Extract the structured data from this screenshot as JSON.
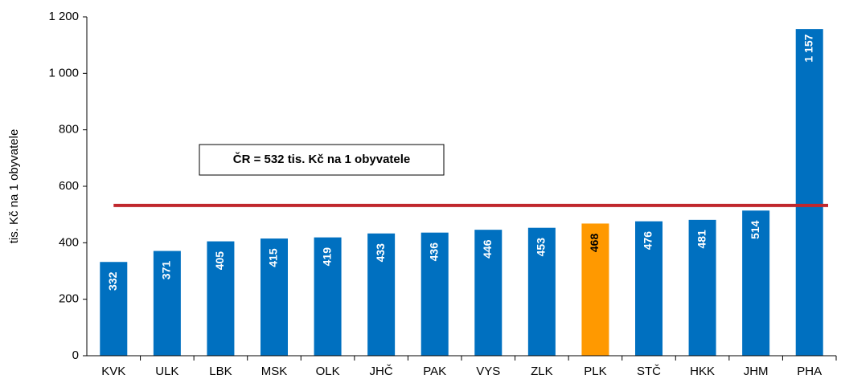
{
  "chart_data": {
    "type": "bar",
    "y_axis_label": "tis. Kč na 1 obyvatele",
    "categories": [
      "KVK",
      "ULK",
      "LBK",
      "MSK",
      "OLK",
      "JHČ",
      "PAK",
      "VYS",
      "ZLK",
      "PLK",
      "STČ",
      "HKK",
      "JHM",
      "PHA"
    ],
    "values": [
      332,
      371,
      405,
      415,
      419,
      433,
      436,
      446,
      453,
      468,
      476,
      481,
      514,
      1157
    ],
    "value_labels": [
      "332",
      "371",
      "405",
      "415",
      "419",
      "433",
      "436",
      "446",
      "453",
      "468",
      "476",
      "481",
      "514",
      "1 157"
    ],
    "colors": [
      "#0070c0",
      "#0070c0",
      "#0070c0",
      "#0070c0",
      "#0070c0",
      "#0070c0",
      "#0070c0",
      "#0070c0",
      "#0070c0",
      "#ff9900",
      "#0070c0",
      "#0070c0",
      "#0070c0",
      "#0070c0"
    ],
    "value_label_colors": [
      "#ffffff",
      "#ffffff",
      "#ffffff",
      "#ffffff",
      "#ffffff",
      "#ffffff",
      "#ffffff",
      "#ffffff",
      "#ffffff",
      "#000000",
      "#ffffff",
      "#ffffff",
      "#ffffff",
      "#ffffff"
    ],
    "reference_line": {
      "value": 532,
      "color": "#c0272d",
      "annotation": "ČR = 532 tis. Kč na 1 obyvatele"
    },
    "ylim": [
      0,
      1200
    ],
    "yticks": [
      0,
      200,
      400,
      600,
      800,
      {
        "value": 1000,
        "label": "1 000"
      },
      {
        "value": 1200,
        "label": "1 200"
      }
    ],
    "grid": false
  }
}
